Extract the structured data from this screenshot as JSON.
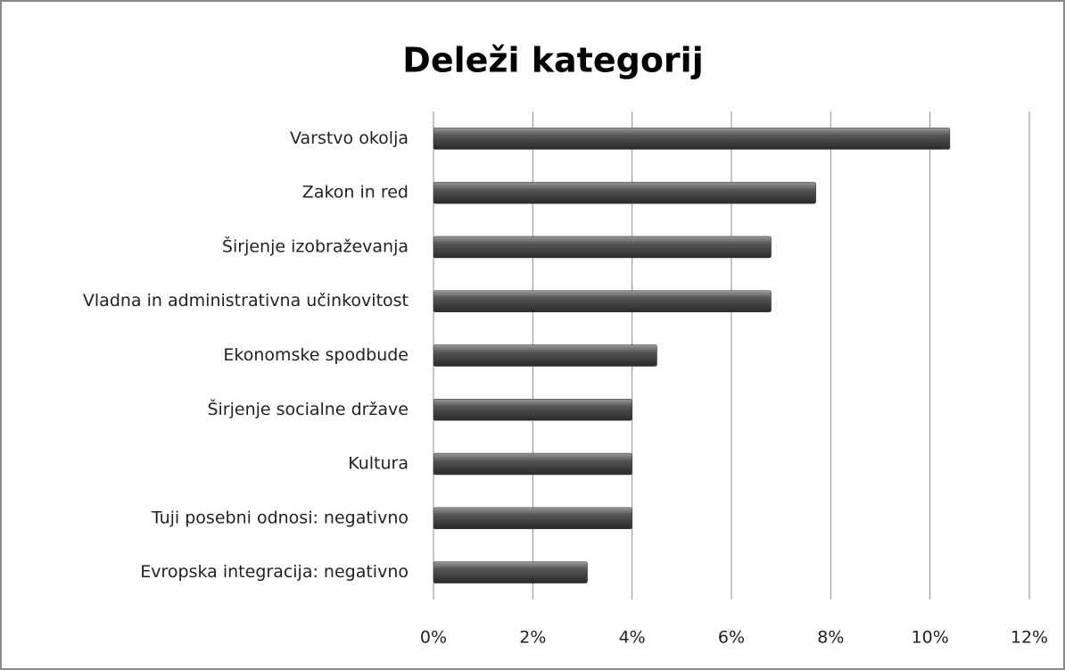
{
  "chart_data": {
    "type": "bar",
    "orientation": "horizontal",
    "title": "Deleži kategorij",
    "categories": [
      "Varstvo okolja",
      "Zakon in red",
      "Širjenje izobraževanja",
      "Vladna in administrativna učinkovitost",
      "Ekonomske spodbude",
      "Širjenje socialne države",
      "Kultura",
      "Tuji posebni odnosi: negativno",
      "Evropska integracija: negativno"
    ],
    "values": [
      10.4,
      7.7,
      6.8,
      6.8,
      4.5,
      4.0,
      4.0,
      4.0,
      3.1
    ],
    "color": "#555555",
    "xlim": [
      0,
      12
    ],
    "xticks": [
      {
        "value": 0,
        "label": "0%"
      },
      {
        "value": 2,
        "label": "2%"
      },
      {
        "value": 4,
        "label": "4%"
      },
      {
        "value": 6,
        "label": "6%"
      },
      {
        "value": 8,
        "label": "8%"
      },
      {
        "value": 10,
        "label": "10%"
      },
      {
        "value": 12,
        "label": "12%"
      }
    ],
    "grid": true
  }
}
